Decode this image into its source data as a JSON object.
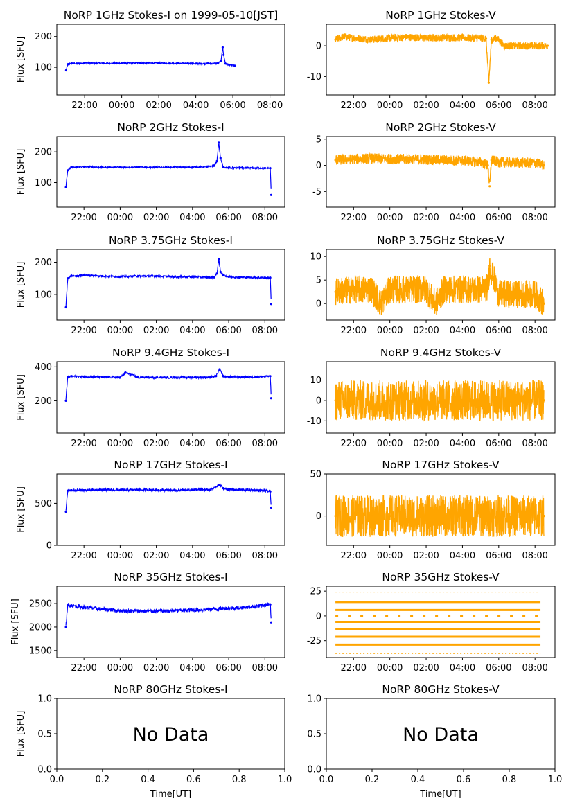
{
  "figure": {
    "x_tick_labels_time": [
      "22:00",
      "00:00",
      "02:00",
      "04:00",
      "06:00",
      "08:00"
    ],
    "x_tick_labels_nodata": [
      "0.0",
      "0.2",
      "0.4",
      "0.6",
      "0.8",
      "1.0"
    ],
    "y_tick_labels_nodata": [
      "0.0",
      "0.5",
      "1.0"
    ],
    "xlabel": "Time[UT]",
    "ylabel": "Flux [SFU]",
    "no_data_text": "No Data",
    "colors": {
      "stokes_i": "#0000ff",
      "stokes_v": "#ffa500"
    }
  },
  "chart_data": [
    {
      "type": "scatter",
      "stokes": "I",
      "freq": "1GHz",
      "title": "NoRP 1GHz Stokes-I on 1999-05-10[JST]",
      "ylabel": "Flux [SFU]",
      "ylim": [
        10,
        240
      ],
      "yticks": [
        100,
        200
      ],
      "xlim_hours": [
        20.5,
        32.8
      ],
      "series": [
        {
          "x": [
            21.0,
            21.1,
            21.3,
            21.6,
            22.0,
            23.0,
            24.0,
            25.0,
            26.0,
            27.0,
            28.0,
            28.8,
            29.2,
            29.35,
            29.45,
            29.5,
            29.6,
            29.8,
            30.1
          ],
          "y": [
            90,
            110,
            113,
            112,
            114,
            113,
            113,
            114,
            113,
            113,
            112,
            112,
            113,
            120,
            165,
            140,
            112,
            108,
            105
          ]
        }
      ]
    },
    {
      "type": "scatter",
      "stokes": "V",
      "freq": "1GHz",
      "title": "NoRP 1GHz Stokes-V",
      "ylabel": "",
      "ylim": [
        -16,
        7
      ],
      "yticks": [
        -10,
        0
      ],
      "xlim_hours": [
        20.5,
        33.1
      ],
      "series": [
        {
          "x": [
            21.0,
            21.5,
            22.0,
            23.0,
            24.0,
            25.0,
            26.0,
            27.0,
            28.0,
            29.0,
            29.3,
            29.45,
            29.6,
            29.9,
            30.3,
            31.0,
            32.0,
            32.7
          ],
          "y": [
            2,
            3,
            2.5,
            2,
            2.5,
            2.8,
            2.5,
            2.7,
            2.6,
            2.5,
            2.3,
            -12,
            2,
            2.5,
            0,
            0,
            0,
            0
          ]
        }
      ]
    },
    {
      "type": "scatter",
      "stokes": "I",
      "freq": "2GHz",
      "title": "NoRP 2GHz Stokes-I",
      "ylabel": "Flux [SFU]",
      "ylim": [
        20,
        250
      ],
      "yticks": [
        100,
        200
      ],
      "xlim_hours": [
        20.5,
        33.1
      ],
      "series": [
        {
          "x": [
            21.0,
            21.1,
            21.3,
            21.6,
            22.0,
            23.0,
            24.0,
            25.0,
            26.0,
            27.0,
            28.0,
            28.8,
            29.2,
            29.35,
            29.45,
            29.55,
            29.7,
            30.0,
            31.0,
            32.0,
            32.3,
            32.35
          ],
          "y": [
            85,
            140,
            150,
            150,
            152,
            150,
            150,
            150,
            150,
            150,
            150,
            152,
            155,
            170,
            230,
            180,
            150,
            148,
            148,
            147,
            147,
            60
          ]
        }
      ]
    },
    {
      "type": "scatter",
      "stokes": "V",
      "freq": "2GHz",
      "title": "NoRP 2GHz Stokes-V",
      "ylabel": "",
      "ylim": [
        -8,
        5.5
      ],
      "yticks": [
        -5,
        0,
        5
      ],
      "xlim_hours": [
        20.5,
        33.1
      ],
      "series": [
        {
          "x": [
            21.0,
            22.0,
            23.0,
            24.0,
            25.0,
            26.0,
            27.0,
            28.0,
            29.0,
            29.4,
            29.5,
            29.6,
            30.0,
            31.0,
            32.0,
            32.5
          ],
          "y": [
            1,
            1.2,
            1.3,
            1.2,
            1.2,
            1.1,
            1,
            0.9,
            0.6,
            0,
            -4,
            1,
            0.6,
            0.5,
            0.5,
            0
          ]
        }
      ]
    },
    {
      "type": "scatter",
      "stokes": "I",
      "freq": "3.75GHz",
      "title": "NoRP 3.75GHz Stokes-I",
      "ylabel": "Flux [SFU]",
      "ylim": [
        20,
        240
      ],
      "yticks": [
        100,
        200
      ],
      "xlim_hours": [
        20.5,
        33.1
      ],
      "series": [
        {
          "x": [
            21.0,
            21.1,
            21.3,
            21.6,
            22.0,
            23.0,
            24.0,
            25.0,
            26.0,
            27.0,
            28.0,
            28.8,
            29.2,
            29.35,
            29.45,
            29.55,
            29.7,
            30.0,
            31.0,
            32.0,
            32.3,
            32.35
          ],
          "y": [
            60,
            150,
            158,
            157,
            160,
            157,
            155,
            157,
            157,
            155,
            155,
            153,
            153,
            165,
            210,
            170,
            160,
            155,
            153,
            152,
            152,
            70
          ]
        }
      ]
    },
    {
      "type": "scatter",
      "stokes": "V",
      "freq": "3.75GHz",
      "title": "NoRP 3.75GHz Stokes-V",
      "ylabel": "",
      "ylim": [
        -3.5,
        11.5
      ],
      "yticks": [
        0,
        5,
        10
      ],
      "xlim_hours": [
        20.5,
        33.1
      ],
      "series": [
        {
          "x": [
            21.0,
            22.0,
            23.0,
            23.5,
            24.0,
            25.0,
            26.0,
            26.5,
            27.0,
            28.0,
            29.0,
            29.4,
            29.5,
            30.0,
            31.0,
            32.0,
            32.5
          ],
          "y": [
            2.5,
            3,
            3,
            0,
            3,
            3,
            3,
            0,
            3,
            3,
            3,
            3.5,
            8,
            2,
            2,
            2,
            0
          ]
        }
      ]
    },
    {
      "type": "scatter",
      "stokes": "I",
      "freq": "9.4GHz",
      "title": "NoRP 9.4GHz Stokes-I",
      "ylabel": "Flux [SFU]",
      "ylim": [
        10,
        430
      ],
      "yticks": [
        200,
        400
      ],
      "xlim_hours": [
        20.5,
        33.1
      ],
      "series": [
        {
          "x": [
            21.0,
            21.1,
            21.3,
            22.0,
            23.0,
            24.0,
            24.3,
            25.0,
            26.0,
            27.0,
            28.0,
            29.0,
            29.3,
            29.5,
            29.7,
            30.0,
            31.0,
            32.0,
            32.3,
            32.35
          ],
          "y": [
            200,
            340,
            345,
            342,
            340,
            338,
            365,
            338,
            337,
            337,
            338,
            338,
            345,
            385,
            345,
            340,
            340,
            343,
            345,
            215
          ]
        }
      ]
    },
    {
      "type": "scatter",
      "stokes": "V",
      "freq": "9.4GHz",
      "title": "NoRP 9.4GHz Stokes-V",
      "ylabel": "",
      "ylim": [
        -16,
        19
      ],
      "yticks": [
        -10,
        0,
        10
      ],
      "xlim_hours": [
        20.5,
        33.1
      ],
      "series": [
        {
          "x": [
            21.0,
            22.0,
            23.0,
            24.0,
            25.0,
            26.0,
            27.0,
            28.0,
            29.0,
            30.0,
            31.0,
            32.0,
            32.5
          ],
          "y": [
            0,
            0,
            0,
            0,
            0,
            0,
            0,
            0,
            0,
            0,
            0,
            0,
            0
          ]
        }
      ]
    },
    {
      "type": "scatter",
      "stokes": "I",
      "freq": "17GHz",
      "title": "NoRP 17GHz Stokes-I",
      "ylabel": "Flux [SFU]",
      "ylim": [
        0,
        850
      ],
      "yticks": [
        0,
        500
      ],
      "xlim_hours": [
        20.5,
        33.1
      ],
      "series": [
        {
          "x": [
            21.0,
            21.1,
            21.3,
            22.0,
            23.0,
            24.0,
            25.0,
            26.0,
            27.0,
            28.0,
            29.0,
            29.5,
            29.7,
            30.0,
            31.0,
            32.0,
            32.3,
            32.35
          ],
          "y": [
            400,
            650,
            655,
            655,
            660,
            658,
            660,
            660,
            655,
            660,
            660,
            720,
            680,
            665,
            660,
            650,
            640,
            450
          ]
        }
      ]
    },
    {
      "type": "scatter",
      "stokes": "V",
      "freq": "17GHz",
      "title": "NoRP 17GHz Stokes-V",
      "ylabel": "",
      "ylim": [
        -35,
        50
      ],
      "yticks": [
        0,
        50
      ],
      "xlim_hours": [
        20.5,
        33.1
      ],
      "series": [
        {
          "x": [
            21.0,
            22.0,
            23.0,
            24.0,
            25.0,
            26.0,
            27.0,
            28.0,
            29.0,
            30.0,
            31.0,
            32.0,
            32.5
          ],
          "y": [
            0,
            0,
            0,
            0,
            0,
            0,
            0,
            0,
            0,
            0,
            0,
            0,
            0
          ]
        }
      ]
    },
    {
      "type": "scatter",
      "stokes": "I",
      "freq": "35GHz",
      "title": "NoRP 35GHz Stokes-I",
      "ylabel": "Flux [SFU]",
      "ylim": [
        1350,
        2870
      ],
      "yticks": [
        1500,
        2000,
        2500
      ],
      "xlim_hours": [
        20.5,
        33.1
      ],
      "series": [
        {
          "x": [
            21.0,
            21.1,
            21.3,
            22.0,
            23.0,
            24.0,
            25.0,
            26.0,
            27.0,
            28.0,
            29.0,
            30.0,
            31.0,
            32.0,
            32.3,
            32.35
          ],
          "y": [
            2000,
            2460,
            2460,
            2420,
            2380,
            2350,
            2340,
            2340,
            2350,
            2360,
            2380,
            2400,
            2420,
            2470,
            2480,
            2100
          ]
        }
      ]
    },
    {
      "type": "scatter",
      "stokes": "V",
      "freq": "35GHz",
      "title": "NoRP 35GHz Stokes-V",
      "ylabel": "",
      "ylim": [
        -42,
        30
      ],
      "yticks": [
        -25,
        0,
        25
      ],
      "xlim_hours": [
        20.5,
        33.1
      ],
      "levels": [
        24,
        14,
        6,
        0,
        -6,
        -13,
        -21,
        -29,
        -38
      ]
    },
    {
      "type": "scatter",
      "stokes": "I",
      "freq": "80GHz",
      "title": "NoRP 80GHz Stokes-I",
      "ylabel": "Flux [SFU]",
      "xlabel": "Time[UT]",
      "xlim": [
        0,
        1
      ],
      "ylim": [
        0,
        1
      ],
      "no_data": true
    },
    {
      "type": "scatter",
      "stokes": "V",
      "freq": "80GHz",
      "title": "NoRP 80GHz Stokes-V",
      "ylabel": "",
      "xlabel": "Time[UT]",
      "xlim": [
        0,
        1
      ],
      "ylim": [
        0,
        1
      ],
      "no_data": true
    }
  ]
}
